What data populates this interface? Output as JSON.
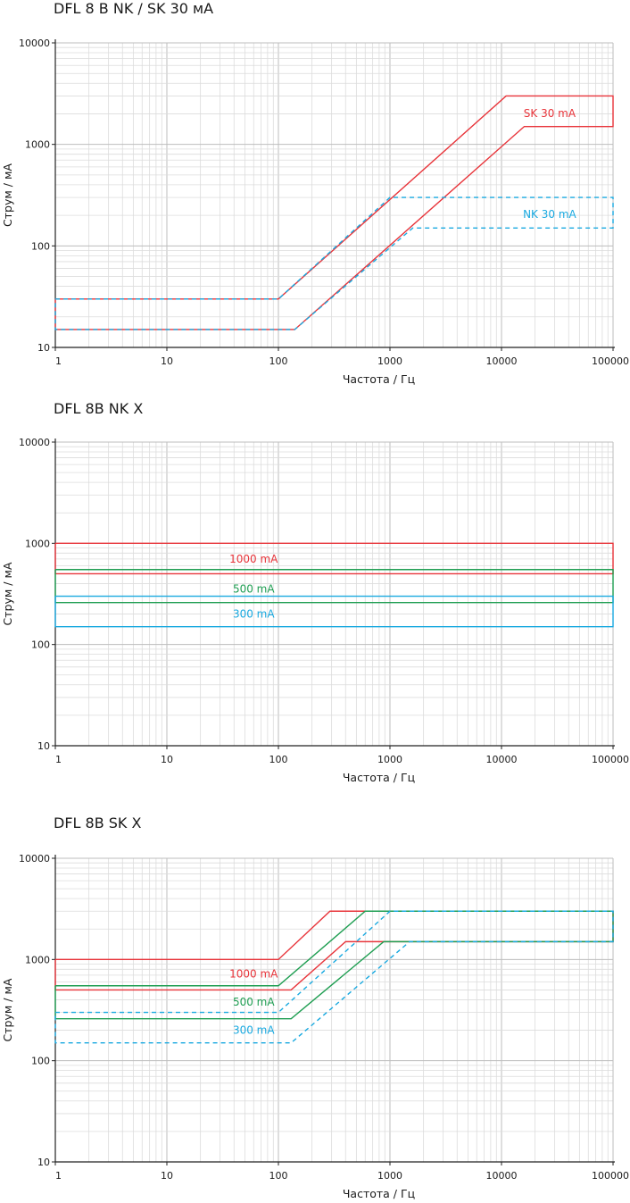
{
  "chart_data": [
    {
      "type": "line",
      "title": "DFL 8  B NK / SK 30 мА",
      "xlabel": "Частота / Гц",
      "ylabel": "Струм / мА",
      "xscale": "log",
      "yscale": "log",
      "xlim": [
        1,
        100000
      ],
      "ylim": [
        10,
        10000
      ],
      "grid": true,
      "x_ticks": [
        "1",
        "10",
        "100",
        "1000",
        "10000",
        "100000"
      ],
      "y_ticks": [
        "10",
        "100",
        "1000",
        "10000"
      ],
      "series": [
        {
          "color": "#e8343a",
          "dash": "",
          "points": [
            [
              1,
              30
            ],
            [
              100,
              30
            ],
            [
              11000,
              3000
            ],
            [
              100000,
              3000
            ],
            [
              100000,
              1500
            ],
            [
              16000,
              1500
            ],
            [
              140,
              15
            ],
            [
              1,
              15
            ],
            [
              1,
              30
            ]
          ]
        },
        {
          "color": "#19a9e0",
          "dash": "5 4",
          "points": [
            [
              1,
              30
            ],
            [
              100,
              30
            ],
            [
              1000,
              300
            ],
            [
              100000,
              300
            ],
            [
              100000,
              150
            ],
            [
              1600,
              150
            ],
            [
              140,
              15
            ],
            [
              1,
              15
            ],
            [
              1,
              30
            ]
          ]
        }
      ],
      "labels": [
        {
          "text": "SK 30 mA",
          "color": "#e8343a",
          "x": 27000,
          "y": 2020
        },
        {
          "text": "NK 30 mA",
          "color": "#19a9e0",
          "x": 27000,
          "y": 205
        }
      ]
    },
    {
      "type": "line",
      "title": "DFL 8B NK X",
      "xlabel": "Частота / Гц",
      "ylabel": "Струм / мА",
      "xscale": "log",
      "yscale": "log",
      "xlim": [
        1,
        100000
      ],
      "ylim": [
        10,
        10000
      ],
      "grid": true,
      "x_ticks": [
        "1",
        "10",
        "100",
        "1000",
        "10000",
        "100000"
      ],
      "y_ticks": [
        "10",
        "100",
        "1000",
        "10000"
      ],
      "series": [
        {
          "color": "#e8343a",
          "dash": "",
          "points": [
            [
              1,
              1000
            ],
            [
              100000,
              1000
            ],
            [
              100000,
              500
            ],
            [
              1,
              500
            ],
            [
              1,
              1000
            ]
          ]
        },
        {
          "color": "#1f9e52",
          "dash": "",
          "points": [
            [
              1,
              550
            ],
            [
              100000,
              550
            ],
            [
              100000,
              260
            ],
            [
              1,
              260
            ],
            [
              1,
              550
            ]
          ]
        },
        {
          "color": "#19a9e0",
          "dash": "",
          "points": [
            [
              1,
              300
            ],
            [
              100000,
              300
            ],
            [
              100000,
              150
            ],
            [
              1,
              150
            ],
            [
              1,
              300
            ]
          ]
        }
      ],
      "labels": [
        {
          "text": "1000 mA",
          "color": "#e8343a",
          "x": 60,
          "y": 700
        },
        {
          "text": "500 mA",
          "color": "#1f9e52",
          "x": 60,
          "y": 355
        },
        {
          "text": "300 mA",
          "color": "#19a9e0",
          "x": 60,
          "y": 200
        }
      ]
    },
    {
      "type": "line",
      "title": "DFL 8B SK X",
      "xlabel": "Частота / Гц",
      "ylabel": "Струм / мА",
      "xscale": "log",
      "yscale": "log",
      "xlim": [
        1,
        100000
      ],
      "ylim": [
        10,
        10000
      ],
      "grid": true,
      "x_ticks": [
        "1",
        "10",
        "100",
        "1000",
        "10000",
        "100000"
      ],
      "y_ticks": [
        "10",
        "100",
        "1000",
        "10000"
      ],
      "series": [
        {
          "color": "#e8343a",
          "dash": "",
          "points": [
            [
              1,
              1000
            ],
            [
              100,
              1000
            ],
            [
              290,
              3000
            ],
            [
              100000,
              3000
            ],
            [
              100000,
              1500
            ],
            [
              400,
              1500
            ],
            [
              130,
              500
            ],
            [
              1,
              500
            ],
            [
              1,
              1000
            ]
          ]
        },
        {
          "color": "#1f9e52",
          "dash": "",
          "points": [
            [
              1,
              550
            ],
            [
              100,
              550
            ],
            [
              600,
              3000
            ],
            [
              100000,
              3000
            ],
            [
              100000,
              1500
            ],
            [
              880,
              1500
            ],
            [
              130,
              260
            ],
            [
              1,
              260
            ],
            [
              1,
              550
            ]
          ]
        },
        {
          "color": "#19a9e0",
          "dash": "5 4",
          "points": [
            [
              1,
              300
            ],
            [
              100,
              300
            ],
            [
              1000,
              3000
            ],
            [
              100000,
              3000
            ],
            [
              100000,
              1500
            ],
            [
              1500,
              1500
            ],
            [
              130,
              150
            ],
            [
              1,
              150
            ],
            [
              1,
              300
            ]
          ]
        }
      ],
      "labels": [
        {
          "text": "1000 mA",
          "color": "#e8343a",
          "x": 60,
          "y": 720
        },
        {
          "text": "500 mA",
          "color": "#1f9e52",
          "x": 60,
          "y": 380
        },
        {
          "text": "300 mA",
          "color": "#19a9e0",
          "x": 60,
          "y": 200
        }
      ]
    }
  ]
}
